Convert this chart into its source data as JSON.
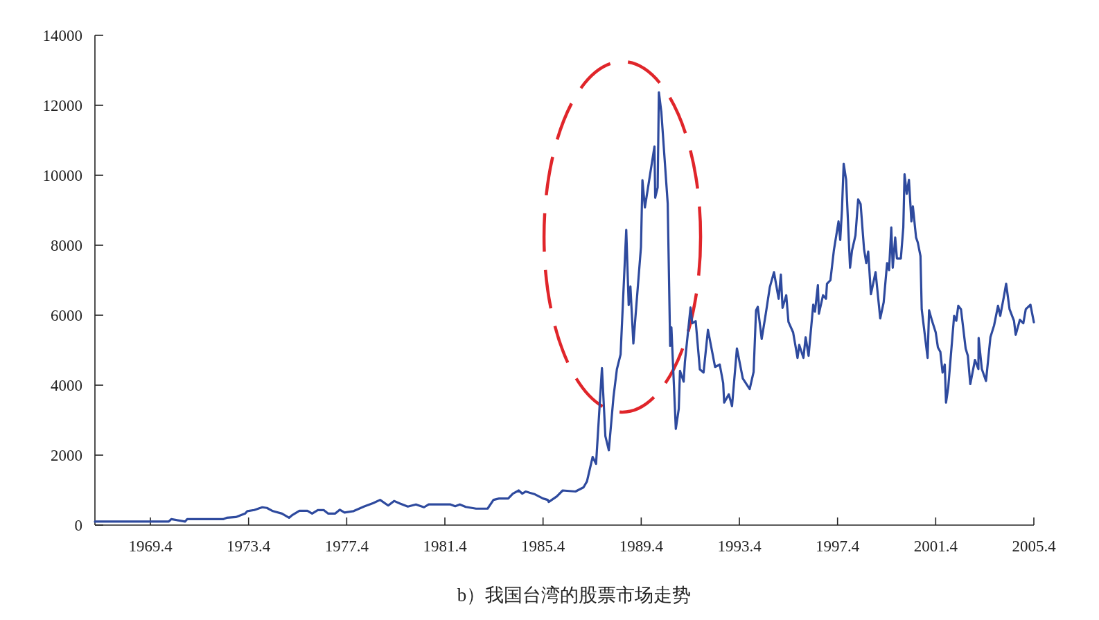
{
  "chart_data": {
    "type": "line",
    "title": "b）我国台湾的股票市场走势",
    "xlim": [
      1967.14,
      2005.4
    ],
    "xticks": [
      1969.4,
      1973.4,
      1977.4,
      1981.4,
      1985.4,
      1989.4,
      1993.4,
      1997.4,
      2001.4,
      2005.4
    ],
    "ylim": [
      0,
      14000
    ],
    "yticks": [
      0,
      2000,
      4000,
      6000,
      8000,
      10000,
      12000,
      14000
    ],
    "series": [
      {
        "color": "#2e4a9e",
        "x": [
          1967.14,
          1970.15,
          1970.25,
          1970.81,
          1970.9,
          1972.36,
          1972.51,
          1972.88,
          1973.26,
          1973.35,
          1973.63,
          1973.96,
          1974.15,
          1974.39,
          1974.76,
          1975.05,
          1975.19,
          1975.47,
          1975.8,
          1975.99,
          1976.22,
          1976.46,
          1976.64,
          1976.93,
          1977.12,
          1977.31,
          1977.68,
          1978.1,
          1978.48,
          1978.76,
          1979.09,
          1979.33,
          1979.56,
          1979.89,
          1980.22,
          1980.55,
          1980.74,
          1981.63,
          1981.82,
          1982.01,
          1982.25,
          1982.67,
          1983.14,
          1983.38,
          1983.61,
          1983.98,
          1984.17,
          1984.41,
          1984.55,
          1984.69,
          1985.07,
          1985.4,
          1985.59,
          1985.63,
          1985.96,
          1986.2,
          1986.72,
          1987.05,
          1987.19,
          1987.42,
          1987.56,
          1987.8,
          1987.94,
          1988.08,
          1988.27,
          1988.41,
          1988.56,
          1988.79,
          1988.89,
          1988.96,
          1989.08,
          1989.39,
          1989.45,
          1989.55,
          1989.94,
          1989.97,
          1990.07,
          1990.12,
          1990.22,
          1990.48,
          1990.58,
          1990.63,
          1990.81,
          1990.93,
          1990.98,
          1991.13,
          1991.18,
          1991.41,
          1991.48,
          1991.62,
          1991.79,
          1991.94,
          1992.12,
          1992.41,
          1992.6,
          1992.74,
          1992.78,
          1992.97,
          1993.1,
          1993.3,
          1993.54,
          1993.82,
          1993.98,
          1994.08,
          1994.15,
          1994.31,
          1994.48,
          1994.64,
          1994.81,
          1995.0,
          1995.09,
          1995.16,
          1995.31,
          1995.4,
          1995.59,
          1995.77,
          1995.84,
          1996.01,
          1996.1,
          1996.22,
          1996.41,
          1996.48,
          1996.6,
          1996.64,
          1996.81,
          1996.93,
          1996.97,
          1997.11,
          1997.25,
          1997.44,
          1997.51,
          1997.58,
          1997.65,
          1997.75,
          1997.91,
          1997.99,
          1998.13,
          1998.24,
          1998.34,
          1998.48,
          1998.57,
          1998.65,
          1998.76,
          1998.95,
          1999.14,
          1999.28,
          1999.42,
          1999.5,
          1999.59,
          1999.65,
          1999.75,
          1999.82,
          1999.98,
          2000.08,
          2000.13,
          2000.22,
          2000.31,
          2000.41,
          2000.47,
          2000.6,
          2000.67,
          2000.78,
          2000.83,
          2001.07,
          2001.13,
          2001.25,
          2001.4,
          2001.49,
          2001.59,
          2001.68,
          2001.77,
          2001.82,
          2001.91,
          2002.15,
          2002.24,
          2002.32,
          2002.43,
          2002.62,
          2002.71,
          2002.81,
          2003.0,
          2003.14,
          2003.15,
          2003.28,
          2003.45,
          2003.63,
          2003.78,
          2003.94,
          2004.03,
          2004.17,
          2004.27,
          2004.41,
          2004.59,
          2004.66,
          2004.83,
          2004.97,
          2005.07,
          2005.26,
          2005.4
        ],
        "values": [
          100,
          100,
          170,
          100,
          170,
          170,
          210,
          230,
          330,
          400,
          430,
          510,
          490,
          400,
          330,
          210,
          290,
          410,
          410,
          330,
          430,
          430,
          330,
          330,
          440,
          360,
          400,
          530,
          630,
          720,
          560,
          690,
          620,
          530,
          590,
          510,
          590,
          590,
          540,
          590,
          520,
          470,
          470,
          720,
          760,
          760,
          900,
          990,
          900,
          960,
          880,
          760,
          720,
          660,
          820,
          990,
          960,
          1080,
          1250,
          1950,
          1750,
          4490,
          2540,
          2140,
          3660,
          4460,
          4880,
          8440,
          6290,
          6820,
          5190,
          7950,
          9860,
          9080,
          10820,
          9360,
          9650,
          12370,
          11810,
          9190,
          5120,
          5650,
          2750,
          3320,
          4410,
          4100,
          4660,
          6220,
          5770,
          5830,
          4450,
          4360,
          5580,
          4520,
          4590,
          4060,
          3500,
          3740,
          3400,
          5050,
          4190,
          3890,
          4380,
          6140,
          6240,
          5320,
          6060,
          6800,
          7230,
          6470,
          7160,
          6210,
          6570,
          5810,
          5510,
          4780,
          5150,
          4780,
          5370,
          4840,
          6300,
          6100,
          6860,
          6040,
          6570,
          6470,
          6900,
          7000,
          7850,
          8680,
          8150,
          9010,
          10330,
          9870,
          7360,
          7850,
          8280,
          9310,
          9180,
          7890,
          7490,
          7820,
          6600,
          7230,
          5910,
          6370,
          7490,
          7290,
          8510,
          7360,
          8220,
          7620,
          7620,
          8510,
          10030,
          9470,
          9870,
          8680,
          9110,
          8220,
          8080,
          7690,
          6170,
          4780,
          6140,
          5840,
          5510,
          5080,
          4950,
          4360,
          4590,
          3500,
          3930,
          5980,
          5840,
          6270,
          6170,
          5050,
          4840,
          4030,
          4720,
          4460,
          5350,
          4460,
          4120,
          5370,
          5710,
          6270,
          5980,
          6500,
          6900,
          6170,
          5840,
          5440,
          5870,
          5770,
          6170,
          6300,
          5800
        ]
      }
    ]
  }
}
